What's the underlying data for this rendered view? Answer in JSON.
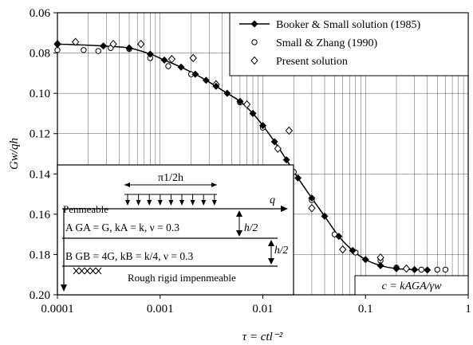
{
  "chart_data": {
    "type": "line",
    "title": "",
    "xlabel": "τ = ctl⁻²",
    "ylabel": "Gw/qh",
    "x_scale": "log",
    "xlim": [
      0.0001,
      1
    ],
    "ylim": [
      0.2,
      0.06
    ],
    "y_inverted": true,
    "grid": true,
    "x_tick_labels": [
      "0.0001",
      "0.001",
      "0.01",
      "0.1",
      "1"
    ],
    "y_ticks": [
      0.06,
      0.08,
      0.1,
      0.12,
      0.14,
      0.16,
      0.18,
      0.2
    ],
    "y_tick_labels": [
      "0.06",
      "0.08",
      "0.10",
      "0.12",
      "0.14",
      "0.16",
      "0.18",
      "0.20"
    ],
    "legend_position": "top-right",
    "series": [
      {
        "name": "Booker & Small solution (1985)",
        "marker": "filled-diamond",
        "points": [
          [
            0.0001,
            0.0755
          ],
          [
            0.00028,
            0.0765
          ],
          [
            0.0005,
            0.0775
          ],
          [
            0.0008,
            0.0805
          ],
          [
            0.0011,
            0.0835
          ],
          [
            0.0016,
            0.087
          ],
          [
            0.0022,
            0.0905
          ],
          [
            0.0028,
            0.0935
          ],
          [
            0.0035,
            0.0965
          ],
          [
            0.0045,
            0.1
          ],
          [
            0.006,
            0.104
          ],
          [
            0.008,
            0.11
          ],
          [
            0.01,
            0.116
          ],
          [
            0.013,
            0.124
          ],
          [
            0.017,
            0.133
          ],
          [
            0.022,
            0.142
          ],
          [
            0.03,
            0.152
          ],
          [
            0.04,
            0.161
          ],
          [
            0.055,
            0.171
          ],
          [
            0.075,
            0.178
          ],
          [
            0.1,
            0.1825
          ],
          [
            0.14,
            0.1855
          ],
          [
            0.2,
            0.187
          ],
          [
            0.3,
            0.1875
          ],
          [
            0.4,
            0.1877
          ]
        ]
      },
      {
        "name": "Small & Zhang (1990)",
        "marker": "open-circle",
        "points": [
          [
            0.0001,
            0.0785
          ],
          [
            0.00018,
            0.0785
          ],
          [
            0.00025,
            0.079
          ],
          [
            0.00033,
            0.0775
          ],
          [
            0.0005,
            0.078
          ],
          [
            0.0008,
            0.0825
          ],
          [
            0.0012,
            0.0865
          ],
          [
            0.002,
            0.0905
          ],
          [
            0.0035,
            0.096
          ],
          [
            0.006,
            0.1045
          ],
          [
            0.01,
            0.117
          ],
          [
            0.02,
            0.139
          ],
          [
            0.03,
            0.153
          ],
          [
            0.05,
            0.17
          ],
          [
            0.08,
            0.179
          ],
          [
            0.14,
            0.183
          ],
          [
            0.2,
            0.1865
          ],
          [
            0.35,
            0.1875
          ],
          [
            0.5,
            0.1875
          ],
          [
            0.6,
            0.1875
          ]
        ]
      },
      {
        "name": "Present solution",
        "marker": "open-diamond",
        "points": [
          [
            0.0001,
            0.0755
          ],
          [
            0.00015,
            0.0745
          ],
          [
            0.00035,
            0.0755
          ],
          [
            0.00065,
            0.0755
          ],
          [
            0.0013,
            0.083
          ],
          [
            0.0021,
            0.0825
          ],
          [
            0.0035,
            0.0955
          ],
          [
            0.007,
            0.1055
          ],
          [
            0.014,
            0.1275
          ],
          [
            0.018,
            0.1185
          ],
          [
            0.03,
            0.157
          ],
          [
            0.06,
            0.1775
          ],
          [
            0.14,
            0.1815
          ],
          [
            0.25,
            0.187
          ]
        ]
      }
    ],
    "inset": {
      "load_width_label": "π1/2h",
      "permeable_label": "Penmeable",
      "load_label": "q",
      "layer_a_label": "A  GA = G, kA = k, ν = 0.3",
      "layer_b_label": "B  GB = 4G, kB = k/4, ν = 0.3",
      "half_thickness_label": "h/2",
      "base_label": "Rough rigid impenmeable"
    },
    "annotation": "c = kAGA/γw"
  }
}
